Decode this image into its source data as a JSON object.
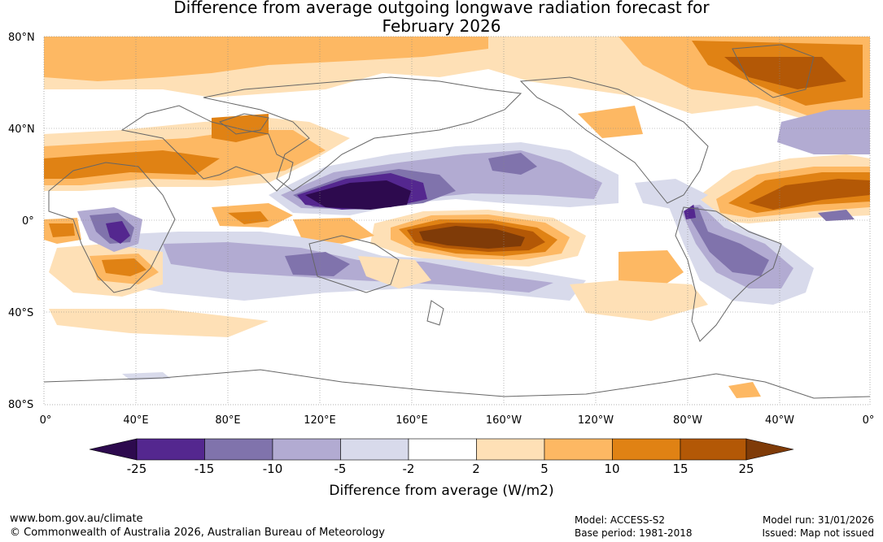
{
  "title": {
    "line1": "Difference from average outgoing longwave radiation forecast for",
    "line2": "February 2026"
  },
  "map": {
    "lat_labels": [
      "80°N",
      "40°N",
      "0°",
      "40°S",
      "80°S"
    ],
    "lon_labels": [
      "0°",
      "40°E",
      "80°E",
      "120°E",
      "160°E",
      "160°W",
      "120°W",
      "80°W",
      "40°W",
      "0°"
    ]
  },
  "colorbar": {
    "title": "Difference from average (W/m2)",
    "ticks": [
      "-25",
      "-15",
      "-10",
      "-5",
      "-2",
      "2",
      "5",
      "10",
      "15",
      "25"
    ],
    "colors": [
      "#2d0a4e",
      "#54278f",
      "#8073ac",
      "#b2abd2",
      "#d8daeb",
      "#ffffff",
      "#fee0b6",
      "#fdb863",
      "#e08214",
      "#b35806",
      "#7f3b08"
    ]
  },
  "footer": {
    "website": "www.bom.gov.au/climate",
    "copyright": "© Commonwealth of Australia 2026, Australian Bureau of Meteorology",
    "model": "Model: ACCESS-S2",
    "base_period": "Base period: 1981-2018",
    "model_run": "Model run: 31/01/2026",
    "issued": "Issued: Map not issued"
  }
}
